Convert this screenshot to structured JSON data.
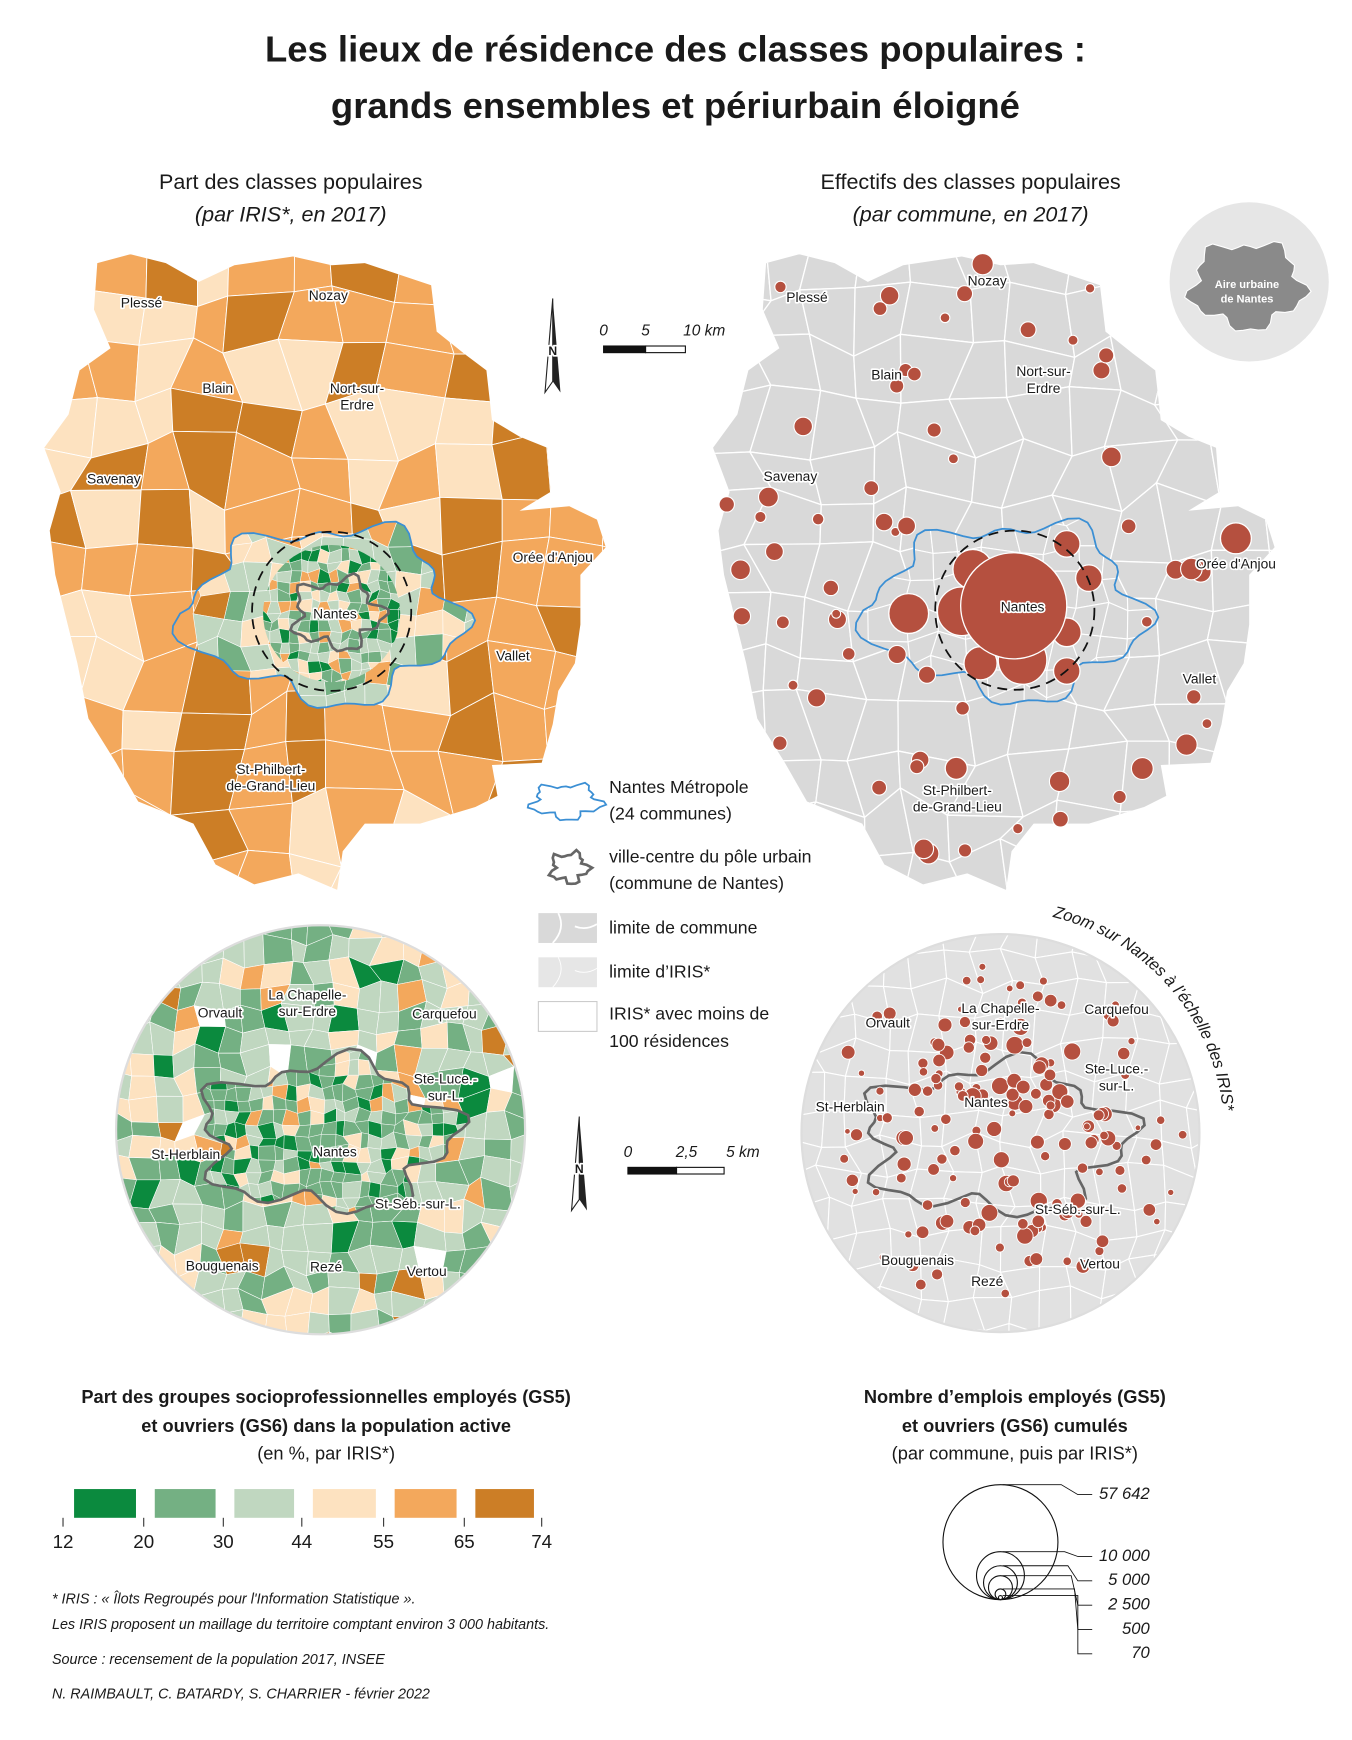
{
  "title": [
    "Les lieux de résidence des classes populaires :",
    "grands ensembles et périurbain éloigné"
  ],
  "map_share": {
    "title": "Part des classes populaires",
    "subtitle": "(par IRIS*, en 2017)",
    "places": [
      [
        "Plessé"
      ],
      [
        "Nozay"
      ],
      [
        "Blain"
      ],
      [
        "Nort-sur-",
        "Erdre"
      ],
      [
        "Savenay"
      ],
      [
        "Orée d'Anjou"
      ],
      [
        "Nantes"
      ],
      [
        "Vallet"
      ],
      [
        "St-Philbert-",
        "de-Grand-Lieu"
      ]
    ]
  },
  "map_count": {
    "title": "Effectifs des classes populaires",
    "subtitle": "(par commune, en 2017)",
    "places": [
      [
        "Plessé"
      ],
      [
        "Nozay"
      ],
      [
        "Blain"
      ],
      [
        "Nort-sur-",
        "Erdre"
      ],
      [
        "Savenay"
      ],
      [
        "Orée d'Anjou"
      ],
      [
        "Nantes"
      ],
      [
        "Vallet"
      ],
      [
        "St-Philbert-",
        "de-Grand-Lieu"
      ]
    ],
    "inset": [
      "Aire urbaine",
      "de Nantes"
    ]
  },
  "north": "N",
  "scale_main": [
    "0",
    "5",
    "10 km"
  ],
  "scale_zoom": [
    "0",
    "2,5",
    "5 km"
  ],
  "legend": [
    [
      "Nantes Métropole",
      "(24 communes)"
    ],
    [
      "ville-centre du pôle urbain",
      "(commune de Nantes)"
    ],
    [
      "limite de commune"
    ],
    [
      "limite d’IRIS*"
    ],
    [
      "IRIS* avec moins de",
      "100 résidences"
    ]
  ],
  "zoom_caption": "Zoom sur Nantes à l’échelle des IRIS*",
  "zoom_share_places": [
    [
      "Orvault"
    ],
    [
      "La Chapelle-",
      "sur-Erdre"
    ],
    [
      "Carquefou"
    ],
    [
      "Ste-Luce.-",
      "sur-L."
    ],
    [
      "St-Herblain"
    ],
    [
      "Nantes"
    ],
    [
      "St-Séb.-sur-L."
    ],
    [
      "Bouguenais"
    ],
    [
      "Rezé"
    ],
    [
      "Vertou"
    ]
  ],
  "zoom_count_places": [
    [
      "Orvault"
    ],
    [
      "La Chapelle-",
      "sur-Erdre"
    ],
    [
      "Carquefou"
    ],
    [
      "Ste-Luce.-",
      "sur-L."
    ],
    [
      "St-Herblain"
    ],
    [
      "Nantes"
    ],
    [
      "St-Séb.-sur-L."
    ],
    [
      "Bouguenais"
    ],
    [
      "Rezé"
    ],
    [
      "Vertou"
    ]
  ],
  "legend_share": {
    "title": [
      "Part des groupes socioprofessionnelles employés (GS5)",
      "et ouvriers (GS6) dans la population active"
    ],
    "subtitle": "(en %, par IRIS*)",
    "breaks": [
      12,
      20,
      30,
      44,
      55,
      65,
      74
    ],
    "colors": [
      "#0b8a3e",
      "#74b083",
      "#c0d7c0",
      "#fde2c0",
      "#f3a85c",
      "#cc7e26"
    ]
  },
  "legend_count": {
    "title": [
      "Nombre d’emplois employés (GS5)",
      "et ouvriers (GS6) cumulés"
    ],
    "subtitle": "(par commune, puis par IRIS*)",
    "sizes": [
      {
        "value": 57642,
        "label": "57 642"
      },
      {
        "value": 10000,
        "label": "10 000"
      },
      {
        "value": 5000,
        "label": "5 000"
      },
      {
        "value": 2500,
        "label": "2 500"
      },
      500,
      70
    ]
  },
  "notes": [
    "* IRIS : « Îlots Regroupés pour l'Information Statistique ».",
    "Les IRIS proposent un maillage du territoire comptant environ 3 000 habitants."
  ],
  "source": "Source : recensement de la population 2017, INSEE",
  "credit": "N. RAIMBAULT, C. BATARDY, S. CHARRIER -  février 2022"
}
